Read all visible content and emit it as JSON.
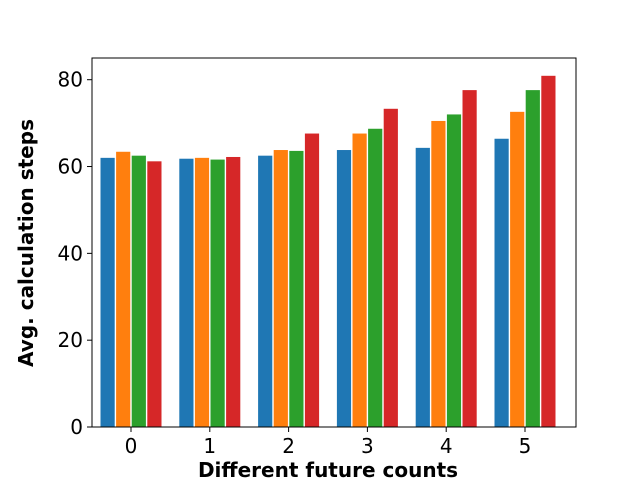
{
  "chart_data": {
    "type": "bar",
    "title": "",
    "xlabel": "Different future counts",
    "ylabel": "Avg. calculation steps",
    "categories": [
      "0",
      "1",
      "2",
      "3",
      "4",
      "5"
    ],
    "ylim": [
      0,
      85
    ],
    "yticks": [
      0,
      20,
      40,
      60,
      80
    ],
    "grid": false,
    "legend": "none",
    "series": [
      {
        "color": "#1f77b4",
        "values": [
          62.0,
          61.8,
          62.5,
          63.8,
          64.3,
          66.4
        ]
      },
      {
        "color": "#ff7f0e",
        "values": [
          63.4,
          62.0,
          63.8,
          67.6,
          70.5,
          72.6
        ]
      },
      {
        "color": "#2ca02c",
        "values": [
          62.5,
          61.6,
          63.6,
          68.7,
          72.0,
          77.6
        ]
      },
      {
        "color": "#d62728",
        "values": [
          61.2,
          62.2,
          67.6,
          73.3,
          77.6,
          80.9
        ]
      }
    ]
  }
}
